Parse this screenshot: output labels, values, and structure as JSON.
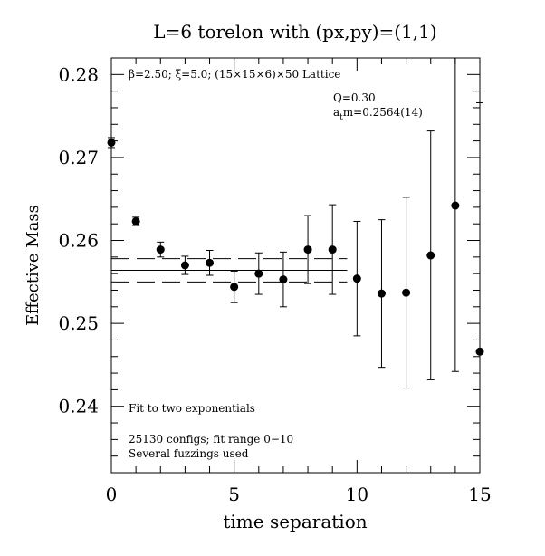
{
  "chart_data": {
    "type": "scatter",
    "title": "L=6 torelon with (px,py)=(1,1)",
    "xlabel": "time separation",
    "ylabel": "Effective Mass",
    "xlim": [
      0,
      15
    ],
    "ylim": [
      0.232,
      0.282
    ],
    "x_ticks": [
      0,
      5,
      10,
      15
    ],
    "x_tick_labels": [
      "0",
      "5",
      "10",
      "15"
    ],
    "y_ticks": [
      0.24,
      0.25,
      0.26,
      0.27,
      0.28
    ],
    "y_tick_labels": [
      "0.24",
      "0.25",
      "0.26",
      "0.27",
      "0.28"
    ],
    "annotations": {
      "lattice": "β=2.50; ξ=5.0; (15×15×6)×50 Lattice",
      "q": "Q=0.30",
      "mass": "a",
      "mass_sub": "t",
      "mass_rest": "m=0.2564(14)",
      "fit": "Fit to two exponentials",
      "configs": "25130 configs; fit range 0−10",
      "fuzzing": "Several fuzzings used"
    },
    "series": [
      {
        "x": [
          0,
          1,
          2,
          3,
          4,
          5,
          6,
          7,
          8,
          9,
          10,
          11,
          12,
          13,
          14,
          15
        ],
        "y": [
          0.2718,
          0.2623,
          0.2589,
          0.257,
          0.2573,
          0.2544,
          0.256,
          0.2553,
          0.2589,
          0.2589,
          0.2554,
          0.2536,
          0.2537,
          0.2582,
          0.2642,
          0.2466
        ],
        "err": [
          0.0006,
          0.0005,
          0.0009,
          0.0011,
          0.0015,
          0.0019,
          0.0025,
          0.0033,
          0.0041,
          0.0054,
          0.0069,
          0.0089,
          0.0115,
          0.015,
          0.02,
          0.03
        ]
      }
    ],
    "fit": {
      "value": 0.2564,
      "upper": 0.2578,
      "lower": 0.255,
      "range": [
        0,
        9.6
      ]
    }
  }
}
